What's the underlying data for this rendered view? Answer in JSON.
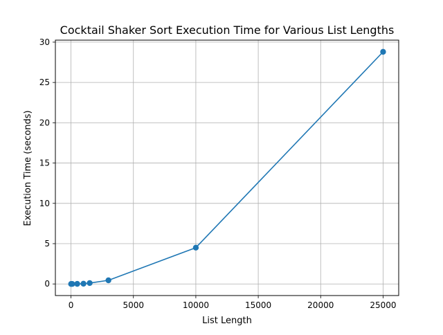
{
  "chart_data": {
    "type": "line",
    "title": "Cocktail Shaker Sort Execution Time for Various List Lengths",
    "xlabel": "List Length",
    "ylabel": "Execution Time (seconds)",
    "x": [
      10,
      100,
      500,
      1000,
      1500,
      3000,
      10000,
      25000
    ],
    "y": [
      0.0,
      0.0,
      0.01,
      0.03,
      0.11,
      0.45,
      4.5,
      28.8
    ],
    "xlim": [
      -1250,
      26250
    ],
    "ylim": [
      -1.44,
      30.25
    ],
    "xticks": [
      0,
      5000,
      10000,
      15000,
      20000,
      25000
    ],
    "yticks": [
      0,
      5,
      10,
      15,
      20,
      25,
      30
    ],
    "grid": true,
    "markers": true,
    "line_color": "#1f77b4"
  }
}
